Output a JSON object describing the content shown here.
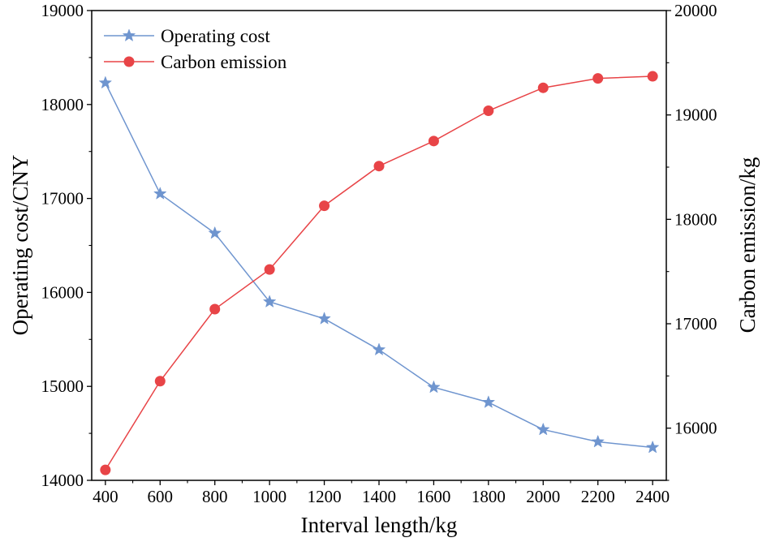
{
  "chart_data": {
    "type": "line",
    "title": "",
    "xlabel": "Interval length/kg",
    "x": [
      400,
      600,
      800,
      1000,
      1200,
      1400,
      1600,
      1800,
      2000,
      2200,
      2400
    ],
    "xlim": [
      350,
      2450
    ],
    "x_ticks": [
      400,
      600,
      800,
      1000,
      1200,
      1400,
      1600,
      1800,
      2000,
      2200,
      2400
    ],
    "y_left": {
      "label": "Operating cost/CNY",
      "lim": [
        14000,
        19000
      ],
      "ticks": [
        14000,
        15000,
        16000,
        17000,
        18000,
        19000
      ]
    },
    "y_right": {
      "label": "Carbon emission/kg",
      "lim": [
        15500,
        20000
      ],
      "ticks": [
        16000,
        17000,
        18000,
        19000,
        20000
      ]
    },
    "series": [
      {
        "name": "Operating cost",
        "axis": "left",
        "marker": "star",
        "color": "#6f95cf",
        "values": [
          18230,
          17050,
          16630,
          15900,
          15720,
          15390,
          14990,
          14830,
          14540,
          14410,
          14350
        ]
      },
      {
        "name": "Carbon emission",
        "axis": "right",
        "marker": "circle",
        "color": "#e84447",
        "values": [
          15600,
          16450,
          17140,
          17520,
          18130,
          18510,
          18750,
          19040,
          19260,
          19350,
          19370
        ]
      }
    ],
    "legend": {
      "position": "top-left"
    },
    "grid": false
  }
}
